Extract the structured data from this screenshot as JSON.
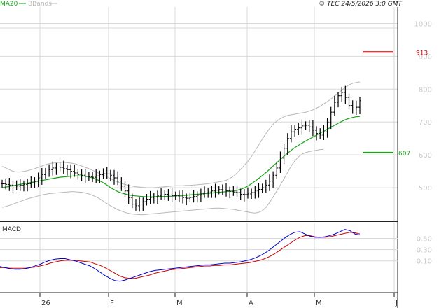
{
  "header": {
    "legend_ma20": "MA20",
    "legend_bbands": "BBands",
    "copyright": "© TEC 24/5/2026 3:0 GMT"
  },
  "colors": {
    "price_bars": "#000000",
    "ma20": "#16a316",
    "bbands": "#b8b8b8",
    "macd": "#0000cc",
    "signal": "#cc0000",
    "resistance": "#c00000",
    "support": "#16a316",
    "grid": "#d8d8d8"
  },
  "chart_data": [
    {
      "type": "ohlc",
      "panel": "price",
      "y_ticks": [
        "1000",
        "900",
        "800",
        "700",
        "600",
        "500"
      ],
      "y_tick_values": [
        1000,
        900,
        800,
        700,
        600,
        500
      ],
      "ylim": [
        400,
        1050
      ],
      "x_ticks": [
        "26",
        "F",
        "M",
        "A",
        "M",
        "J"
      ],
      "grid": true,
      "resistance": {
        "label": "913",
        "value": 913
      },
      "support": {
        "label": "607",
        "value": 607
      },
      "legend": [
        "MA20",
        "BBands"
      ],
      "close": [
        512,
        510,
        508,
        506,
        505,
        507,
        510,
        512,
        515,
        520,
        530,
        540,
        548,
        555,
        560,
        563,
        562,
        558,
        555,
        550,
        545,
        540,
        538,
        535,
        533,
        532,
        536,
        540,
        543,
        542,
        538,
        530,
        520,
        505,
        490,
        470,
        450,
        445,
        450,
        458,
        465,
        470,
        472,
        475,
        478,
        480,
        478,
        476,
        475,
        472,
        470,
        468,
        470,
        473,
        477,
        481,
        484,
        487,
        490,
        492,
        494,
        493,
        491,
        489,
        487,
        485,
        480,
        479,
        481,
        485,
        490,
        495,
        500,
        508,
        520,
        538,
        560,
        590,
        620,
        650,
        670,
        678,
        682,
        688,
        690,
        685,
        675,
        665,
        660,
        670,
        700,
        730,
        760,
        780,
        790,
        775,
        750,
        740,
        745,
        765
      ],
      "ma20": [
        500,
        502,
        504,
        506,
        508,
        510,
        512,
        514,
        516,
        518,
        520,
        522,
        524,
        526,
        528,
        530,
        532,
        533,
        534,
        535,
        536,
        536,
        536,
        535,
        533,
        530,
        526,
        521,
        515,
        508,
        500,
        494,
        488,
        484,
        481,
        478,
        476,
        475,
        474,
        473,
        472,
        472,
        472,
        473,
        473,
        473,
        474,
        474,
        475,
        476,
        476,
        477,
        478,
        479,
        480,
        481,
        482,
        483,
        484,
        485,
        486,
        487,
        488,
        489,
        490,
        492,
        495,
        499,
        505,
        512,
        520,
        528,
        537,
        546,
        556,
        566,
        576,
        586,
        596,
        605,
        614,
        622,
        629,
        636,
        642,
        648,
        654,
        660,
        666,
        672,
        678,
        684,
        690,
        696,
        702,
        707,
        711,
        714,
        716,
        717
      ],
      "bb_upper": [
        565,
        560,
        555,
        550,
        548,
        548,
        550,
        552,
        555,
        558,
        562,
        566,
        570,
        573,
        575,
        576,
        577,
        577,
        576,
        575,
        573,
        570,
        566,
        562,
        558,
        553,
        548,
        543,
        538,
        533,
        528,
        522,
        517,
        513,
        510,
        507,
        505,
        503,
        502,
        501,
        500,
        500,
        500,
        501,
        502,
        503,
        504,
        505,
        506,
        506,
        506,
        507,
        507,
        508,
        509,
        510,
        511,
        512,
        514,
        516,
        518,
        520,
        523,
        528,
        535,
        545,
        556,
        568,
        580,
        595,
        612,
        630,
        648,
        665,
        680,
        693,
        703,
        710,
        716,
        720,
        722,
        724,
        726,
        728,
        730,
        733,
        737,
        742,
        748,
        755,
        762,
        770,
        779,
        788,
        797,
        806,
        813,
        818,
        820,
        822
      ],
      "bb_lower": [
        440,
        443,
        446,
        450,
        454,
        458,
        462,
        466,
        469,
        472,
        475,
        478,
        480,
        482,
        483,
        484,
        485,
        486,
        487,
        488,
        488,
        487,
        486,
        484,
        481,
        477,
        472,
        466,
        459,
        452,
        445,
        439,
        433,
        429,
        425,
        422,
        420,
        419,
        418,
        418,
        419,
        420,
        421,
        422,
        423,
        424,
        425,
        426,
        427,
        428,
        429,
        430,
        431,
        432,
        433,
        434,
        435,
        436,
        437,
        438,
        438,
        437,
        436,
        435,
        434,
        432,
        430,
        428,
        426,
        424,
        423,
        425,
        430,
        440,
        455,
        472,
        490,
        508,
        527,
        547,
        566,
        582,
        594,
        602,
        607,
        610,
        612,
        614,
        616,
        617
      ]
    },
    {
      "type": "line",
      "panel": "macd",
      "title": "MACD",
      "y_ticks": [
        "0.50",
        "0.30",
        "0.10"
      ],
      "y_tick_values": [
        0.5,
        0.3,
        0.1
      ],
      "ylim": [
        -0.45,
        0.78
      ],
      "grid": true,
      "series": [
        {
          "name": "MACD",
          "values": [
            0.0,
            -0.02,
            -0.04,
            -0.05,
            -0.05,
            -0.04,
            -0.02,
            0.01,
            0.04,
            0.08,
            0.11,
            0.13,
            0.14,
            0.14,
            0.12,
            0.1,
            0.07,
            0.04,
            0.01,
            -0.04,
            -0.1,
            -0.16,
            -0.21,
            -0.25,
            -0.26,
            -0.24,
            -0.21,
            -0.18,
            -0.15,
            -0.12,
            -0.09,
            -0.07,
            -0.06,
            -0.05,
            -0.04,
            -0.03,
            -0.02,
            -0.01,
            0.0,
            0.01,
            0.02,
            0.03,
            0.03,
            0.04,
            0.05,
            0.06,
            0.06,
            0.07,
            0.08,
            0.1,
            0.12,
            0.15,
            0.19,
            0.24,
            0.3,
            0.37,
            0.44,
            0.51,
            0.57,
            0.61,
            0.62,
            0.58,
            0.54,
            0.52,
            0.52,
            0.53,
            0.55,
            0.58,
            0.62,
            0.66,
            0.64,
            0.58,
            0.56
          ]
        },
        {
          "name": "Signal",
          "values": [
            -0.02,
            -0.02,
            -0.03,
            -0.03,
            -0.03,
            -0.03,
            -0.02,
            -0.01,
            0.01,
            0.03,
            0.06,
            0.08,
            0.1,
            0.11,
            0.11,
            0.11,
            0.1,
            0.09,
            0.08,
            0.05,
            0.02,
            -0.02,
            -0.07,
            -0.12,
            -0.17,
            -0.2,
            -0.21,
            -0.21,
            -0.19,
            -0.17,
            -0.15,
            -0.12,
            -0.1,
            -0.08,
            -0.06,
            -0.05,
            -0.04,
            -0.03,
            -0.02,
            -0.01,
            0.0,
            0.01,
            0.01,
            0.02,
            0.02,
            0.03,
            0.03,
            0.04,
            0.05,
            0.06,
            0.07,
            0.09,
            0.11,
            0.14,
            0.18,
            0.23,
            0.29,
            0.35,
            0.41,
            0.47,
            0.52,
            0.55,
            0.55,
            0.53,
            0.52,
            0.52,
            0.53,
            0.55,
            0.57,
            0.59,
            0.61,
            0.6,
            0.58
          ]
        }
      ]
    }
  ]
}
